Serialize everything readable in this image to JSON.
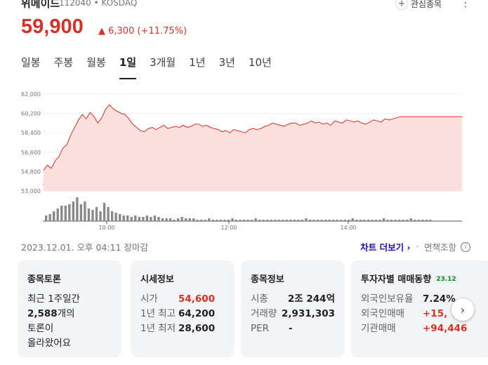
{
  "header": {
    "name": "위메이드",
    "code": "112040 • KOSDAQ",
    "interest_label": "관심종목",
    "plus_glyph": "+",
    "more_glyph": "⋮"
  },
  "quote": {
    "price": "59,900",
    "change": "▲ 6,300 (+11.75%)",
    "up_color": "#d93025"
  },
  "range_tabs": [
    "일봉",
    "주봉",
    "월봉",
    "1일",
    "3개월",
    "1년",
    "3년",
    "10년"
  ],
  "active_tab": "1일",
  "chart_data": {
    "type": "area",
    "ylim": [
      53000,
      62000
    ],
    "y_ticks": [
      "62,000",
      "60,200",
      "58,400",
      "56,600",
      "54,800",
      "53,000"
    ],
    "x_ticks": [
      "10:00",
      "12:00",
      "14:00"
    ],
    "reference_price": 53600,
    "line_color": "#d93025",
    "fill_color": "#fbe0de",
    "price_points": [
      54900,
      55400,
      55100,
      55800,
      56200,
      57000,
      57300,
      58200,
      58900,
      59600,
      60100,
      59700,
      60300,
      59900,
      59300,
      59800,
      60600,
      61000,
      60600,
      60400,
      60200,
      60100,
      59700,
      59200,
      58900,
      58600,
      58500,
      58800,
      58900,
      58700,
      58900,
      59100,
      58800,
      58900,
      59000,
      58900,
      59100,
      58900,
      59000,
      59200,
      59200,
      59000,
      59100,
      58900,
      58800,
      58700,
      58500,
      58600,
      58400,
      58700,
      58600,
      58500,
      58400,
      58700,
      58800,
      58700,
      58800,
      59000,
      59100,
      59300,
      59200,
      59100,
      59000,
      59200,
      59300,
      59300,
      59100,
      59200,
      59300,
      59500,
      59300,
      59400,
      59200,
      59300,
      59100,
      59500,
      59400,
      59300,
      59600,
      59500,
      59400,
      59500,
      59300,
      59200,
      59400,
      59600,
      59500,
      59400,
      59700,
      59600,
      59700,
      59800,
      59900,
      59900,
      59900,
      59900,
      59900,
      59900,
      59900,
      59900
    ],
    "volume_points": [
      4,
      5,
      7,
      9,
      11,
      11,
      12,
      14,
      17,
      12,
      14,
      9,
      8,
      10,
      7,
      13,
      10,
      7,
      6,
      5,
      4,
      4,
      3,
      4,
      3,
      3,
      4,
      3,
      4,
      3,
      2,
      2,
      2,
      1,
      2,
      3,
      2,
      2,
      2,
      1,
      1,
      1,
      2,
      1,
      1,
      1,
      1,
      1,
      2,
      1,
      1,
      1,
      1,
      1,
      2,
      1,
      1,
      1,
      1,
      1,
      1,
      1,
      1,
      1,
      1,
      1,
      1,
      2,
      1,
      1,
      1,
      1,
      1,
      1,
      1,
      1,
      1,
      1,
      1,
      2,
      1,
      1,
      1,
      1,
      1,
      1,
      1,
      2,
      1,
      1,
      1,
      1,
      1,
      1,
      2,
      1,
      1,
      1,
      1,
      1
    ]
  },
  "footer": {
    "date": "2023.12.01. 오후 04:11 장마감",
    "chart_more": "차트 더보기",
    "chevron": "›",
    "separator": "•",
    "disclaimer": "면책조항",
    "info_glyph": "i"
  },
  "cards": {
    "discussion": {
      "title": "종목토론",
      "line1": "최근 1주일간",
      "count": "2,588",
      "count_suffix": "개의",
      "line3": "토론이",
      "line4": "올라왔어요"
    },
    "market": {
      "title": "시세정보",
      "rows": [
        {
          "label": "시가",
          "value": "54,600"
        },
        {
          "label": "1년 최고",
          "value": "64,200"
        },
        {
          "label": "1년 최저",
          "value": "28,600"
        }
      ]
    },
    "stock_info": {
      "title": "종목정보",
      "rows": [
        {
          "label": "시총",
          "value": "2조 244억"
        },
        {
          "label": "거래량",
          "value": "2,931,303"
        },
        {
          "label": "PER",
          "value": "-"
        }
      ]
    },
    "investor": {
      "title": "투자자별 매매동향",
      "badge": "23.12",
      "rows": [
        {
          "label": "외국인보유율",
          "value": "7.24%"
        },
        {
          "label": "외국인매매",
          "value": "+15,"
        },
        {
          "label": "기관매매",
          "value": "+94,446"
        }
      ]
    }
  },
  "next_button": "›"
}
